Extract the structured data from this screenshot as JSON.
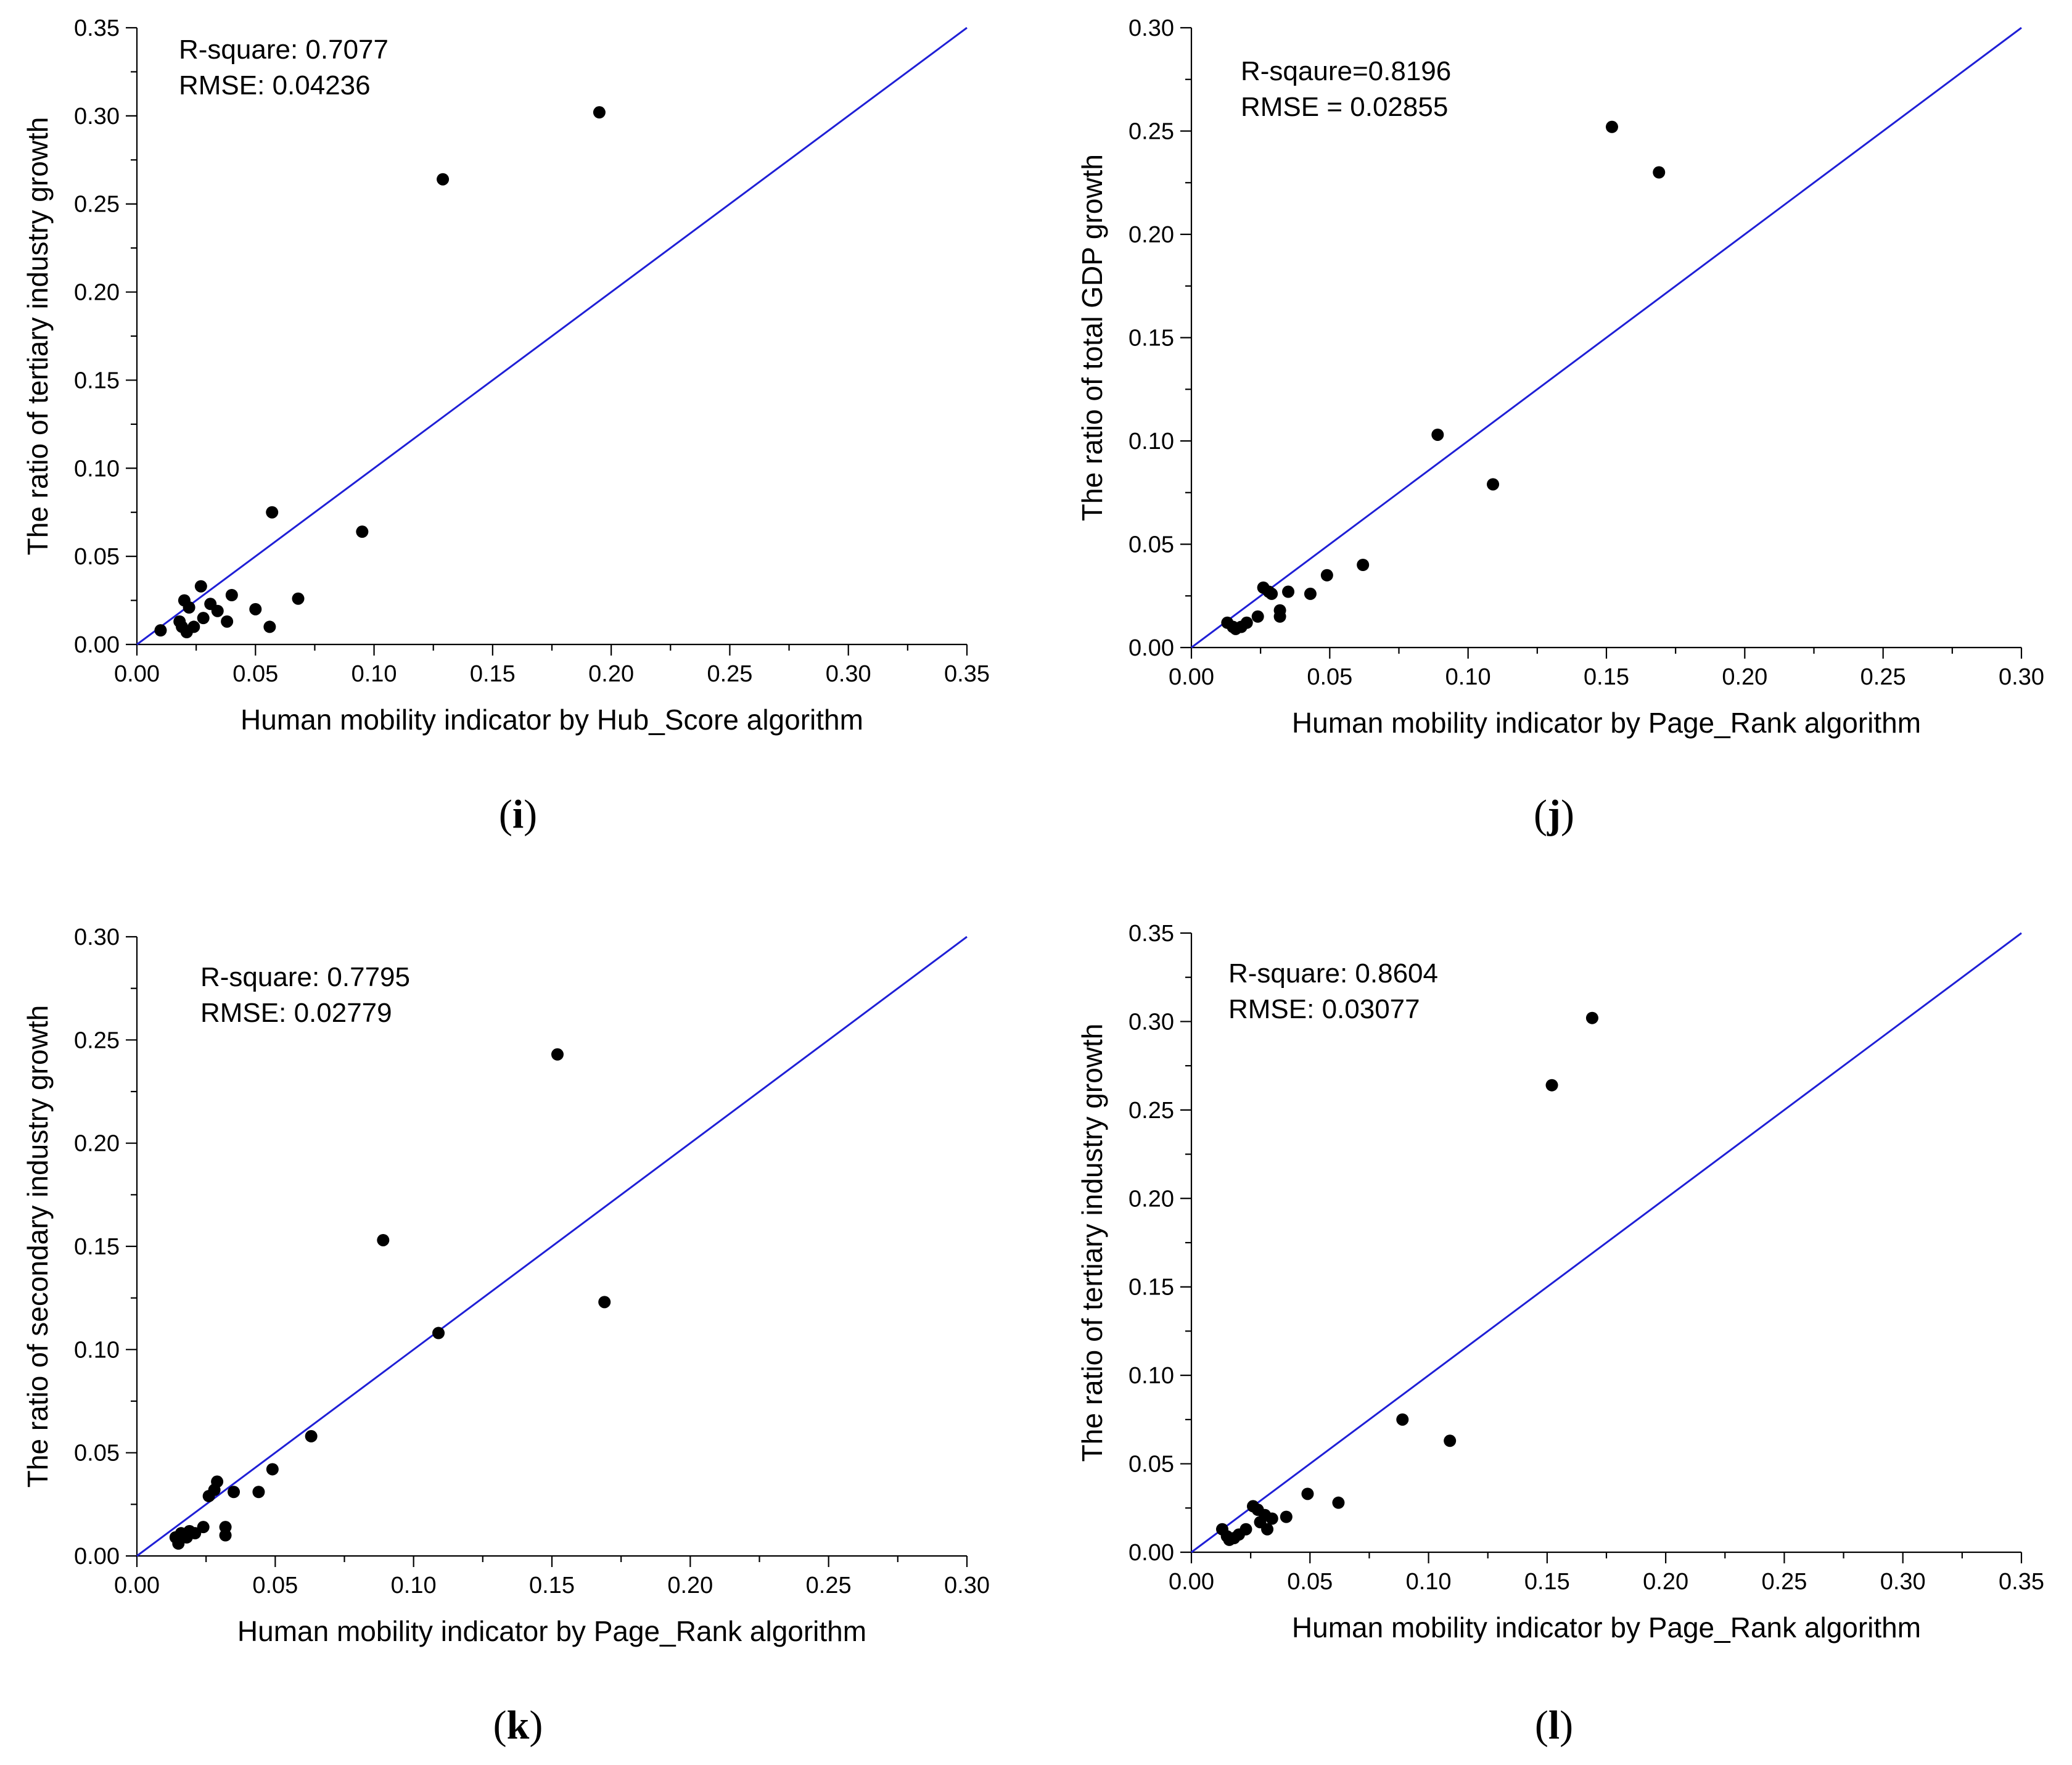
{
  "chart_data": [
    {
      "type": "scatter",
      "panel_label": "i",
      "xlabel": "Human mobility indicator by Hub_Score algorithm",
      "ylabel": "The ratio of tertiary industry growth",
      "xlim": [
        0,
        0.35
      ],
      "ylim": [
        0,
        0.35
      ],
      "xticks": [
        "0.00",
        "0.05",
        "0.10",
        "0.15",
        "0.20",
        "0.25",
        "0.30",
        "0.35"
      ],
      "yticks": [
        "0.00",
        "0.05",
        "0.10",
        "0.15",
        "0.20",
        "0.25",
        "0.30",
        "0.35"
      ],
      "annotation": [
        "R-square: 0.7077",
        "RMSE: 0.04236"
      ],
      "reference_line": [
        [
          0,
          0
        ],
        [
          0.35,
          0.35
        ]
      ],
      "line_color": "#1f1fd6",
      "points": [
        [
          0.01,
          0.008
        ],
        [
          0.018,
          0.013
        ],
        [
          0.019,
          0.01
        ],
        [
          0.02,
          0.025
        ],
        [
          0.021,
          0.007
        ],
        [
          0.022,
          0.021
        ],
        [
          0.024,
          0.01
        ],
        [
          0.027,
          0.033
        ],
        [
          0.028,
          0.015
        ],
        [
          0.031,
          0.023
        ],
        [
          0.034,
          0.019
        ],
        [
          0.038,
          0.013
        ],
        [
          0.04,
          0.028
        ],
        [
          0.05,
          0.02
        ],
        [
          0.056,
          0.01
        ],
        [
          0.057,
          0.075
        ],
        [
          0.068,
          0.026
        ],
        [
          0.095,
          0.064
        ],
        [
          0.129,
          0.264
        ],
        [
          0.195,
          0.302
        ]
      ]
    },
    {
      "type": "scatter",
      "panel_label": "j",
      "xlabel": "Human mobility indicator by Page_Rank algorithm",
      "ylabel": "The ratio of total GDP growth",
      "xlim": [
        0,
        0.3
      ],
      "ylim": [
        0,
        0.3
      ],
      "xticks": [
        "0.00",
        "0.05",
        "0.10",
        "0.15",
        "0.20",
        "0.25",
        "0.30"
      ],
      "yticks": [
        "0.00",
        "0.05",
        "0.10",
        "0.15",
        "0.20",
        "0.25",
        "0.30"
      ],
      "annotation": [
        "R-sqaure=0.8196",
        "RMSE = 0.02855"
      ],
      "reference_line": [
        [
          0,
          0
        ],
        [
          0.3,
          0.3
        ]
      ],
      "line_color": "#1f1fd6",
      "points": [
        [
          0.013,
          0.012
        ],
        [
          0.015,
          0.01
        ],
        [
          0.016,
          0.009
        ],
        [
          0.018,
          0.01
        ],
        [
          0.02,
          0.012
        ],
        [
          0.024,
          0.015
        ],
        [
          0.026,
          0.029
        ],
        [
          0.028,
          0.027
        ],
        [
          0.029,
          0.026
        ],
        [
          0.032,
          0.015
        ],
        [
          0.032,
          0.018
        ],
        [
          0.035,
          0.027
        ],
        [
          0.043,
          0.026
        ],
        [
          0.049,
          0.035
        ],
        [
          0.062,
          0.04
        ],
        [
          0.089,
          0.103
        ],
        [
          0.109,
          0.079
        ],
        [
          0.152,
          0.252
        ],
        [
          0.169,
          0.23
        ]
      ]
    },
    {
      "type": "scatter",
      "panel_label": "k",
      "xlabel": "Human mobility indicator by Page_Rank algorithm",
      "ylabel": "The ratio of secondary industry growth",
      "xlim": [
        0,
        0.3
      ],
      "ylim": [
        0,
        0.3
      ],
      "xticks": [
        "0.00",
        "0.05",
        "0.10",
        "0.15",
        "0.20",
        "0.25",
        "0.30"
      ],
      "yticks": [
        "0.00",
        "0.05",
        "0.10",
        "0.15",
        "0.20",
        "0.25",
        "0.30"
      ],
      "annotation": [
        "R-square: 0.7795",
        "RMSE: 0.02779"
      ],
      "reference_line": [
        [
          0,
          0
        ],
        [
          0.3,
          0.3
        ]
      ],
      "line_color": "#1f1fd6",
      "points": [
        [
          0.014,
          0.009
        ],
        [
          0.015,
          0.006
        ],
        [
          0.016,
          0.011
        ],
        [
          0.018,
          0.009
        ],
        [
          0.019,
          0.012
        ],
        [
          0.021,
          0.011
        ],
        [
          0.024,
          0.014
        ],
        [
          0.026,
          0.029
        ],
        [
          0.028,
          0.032
        ],
        [
          0.029,
          0.036
        ],
        [
          0.032,
          0.01
        ],
        [
          0.032,
          0.014
        ],
        [
          0.035,
          0.031
        ],
        [
          0.044,
          0.031
        ],
        [
          0.049,
          0.042
        ],
        [
          0.063,
          0.058
        ],
        [
          0.089,
          0.153
        ],
        [
          0.109,
          0.108
        ],
        [
          0.152,
          0.243
        ],
        [
          0.169,
          0.123
        ]
      ]
    },
    {
      "type": "scatter",
      "panel_label": "l",
      "xlabel": "Human mobility indicator by Page_Rank algorithm",
      "ylabel": "The ratio of tertiary industry growth",
      "xlim": [
        0,
        0.35
      ],
      "ylim": [
        0,
        0.35
      ],
      "xticks": [
        "0.00",
        "0.05",
        "0.10",
        "0.15",
        "0.20",
        "0.25",
        "0.30",
        "0.35"
      ],
      "yticks": [
        "0.00",
        "0.05",
        "0.10",
        "0.15",
        "0.20",
        "0.25",
        "0.30",
        "0.35"
      ],
      "annotation": [
        "R-square: 0.8604",
        "RMSE: 0.03077"
      ],
      "reference_line": [
        [
          0,
          0
        ],
        [
          0.35,
          0.35
        ]
      ],
      "line_color": "#1f1fd6",
      "points": [
        [
          0.013,
          0.013
        ],
        [
          0.015,
          0.009
        ],
        [
          0.016,
          0.007
        ],
        [
          0.018,
          0.008
        ],
        [
          0.02,
          0.01
        ],
        [
          0.023,
          0.013
        ],
        [
          0.026,
          0.026
        ],
        [
          0.028,
          0.024
        ],
        [
          0.029,
          0.017
        ],
        [
          0.031,
          0.021
        ],
        [
          0.032,
          0.013
        ],
        [
          0.034,
          0.019
        ],
        [
          0.04,
          0.02
        ],
        [
          0.049,
          0.033
        ],
        [
          0.062,
          0.028
        ],
        [
          0.089,
          0.075
        ],
        [
          0.109,
          0.063
        ],
        [
          0.152,
          0.264
        ],
        [
          0.169,
          0.302
        ]
      ]
    }
  ]
}
